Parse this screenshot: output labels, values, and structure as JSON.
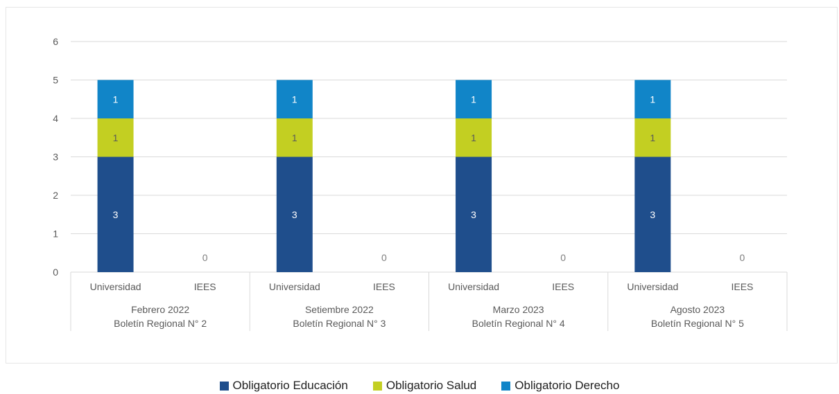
{
  "chart_data": {
    "type": "bar",
    "stacked": true,
    "groups": [
      {
        "label_line1": "Febrero 2022",
        "label_line2": "Boletín Regional N° 2"
      },
      {
        "label_line1": "Setiembre 2022",
        "label_line2": "Boletín Regional N° 3"
      },
      {
        "label_line1": "Marzo 2023",
        "label_line2": "Boletín Regional N° 4"
      },
      {
        "label_line1": "Agosto 2023",
        "label_line2": "Boletín Regional N° 5"
      }
    ],
    "subcategories": [
      "Universidad",
      "IEES"
    ],
    "series": [
      {
        "name": "Obligatorio Educación",
        "color": "#1f4e8c",
        "label_color": "#ffffff",
        "values": [
          [
            3,
            0
          ],
          [
            3,
            0
          ],
          [
            3,
            0
          ],
          [
            3,
            0
          ]
        ]
      },
      {
        "name": "Obligatorio Salud",
        "color": "#c3cf22",
        "label_color": "#595959",
        "values": [
          [
            1,
            0
          ],
          [
            1,
            0
          ],
          [
            1,
            0
          ],
          [
            1,
            0
          ]
        ]
      },
      {
        "name": "Obligatorio Derecho",
        "color": "#1185c8",
        "label_color": "#ffffff",
        "values": [
          [
            1,
            0
          ],
          [
            1,
            0
          ],
          [
            1,
            0
          ],
          [
            1,
            0
          ]
        ]
      }
    ],
    "total_labels": [
      [
        "",
        "0"
      ],
      [
        "",
        "0"
      ],
      [
        "",
        "0"
      ],
      [
        "",
        "0"
      ]
    ],
    "yticks": [
      0,
      1,
      2,
      3,
      4,
      5,
      6
    ],
    "ylim": [
      0,
      6
    ],
    "grid": true,
    "legend_position": "bottom"
  }
}
